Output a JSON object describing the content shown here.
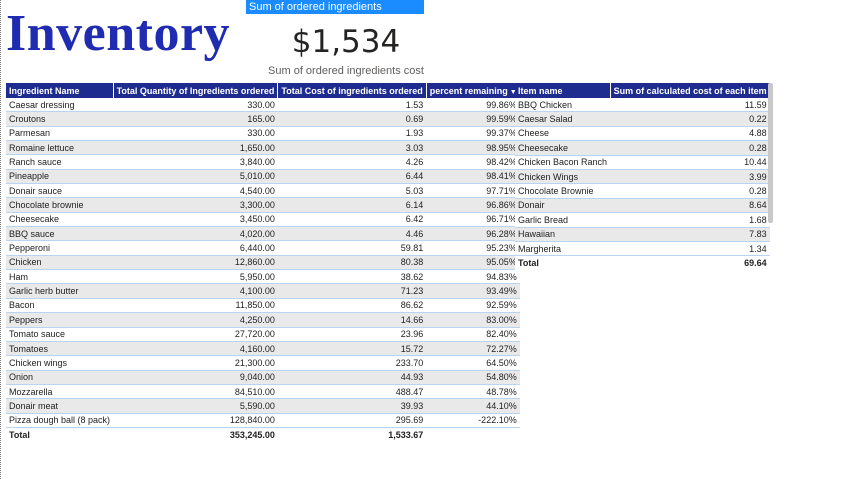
{
  "report": {
    "title": "Inventory"
  },
  "card": {
    "header": "Sum of ordered ingredients",
    "value": "$1,534",
    "label": "Sum of ordered ingredients cost"
  },
  "inventory_table": {
    "columns": [
      "Ingredient Name",
      "Total Quantity of Ingredients ordered",
      "Total Cost of ingredients ordered",
      "percent remaining"
    ],
    "rows": [
      [
        "Caesar dressing",
        "330.00",
        "1.53",
        "99.86%"
      ],
      [
        "Croutons",
        "165.00",
        "0.69",
        "99.59%"
      ],
      [
        "Parmesan",
        "330.00",
        "1.93",
        "99.37%"
      ],
      [
        "Romaine lettuce",
        "1,650.00",
        "3.03",
        "98.95%"
      ],
      [
        "Ranch sauce",
        "3,840.00",
        "4.26",
        "98.42%"
      ],
      [
        "Pineapple",
        "5,010.00",
        "6.44",
        "98.41%"
      ],
      [
        "Donair sauce",
        "4,540.00",
        "5.03",
        "97.71%"
      ],
      [
        "Chocolate brownie",
        "3,300.00",
        "6.14",
        "96.86%"
      ],
      [
        "Cheesecake",
        "3,450.00",
        "6.42",
        "96.71%"
      ],
      [
        "BBQ sauce",
        "4,020.00",
        "4.46",
        "96.28%"
      ],
      [
        "Pepperoni",
        "6,440.00",
        "59.81",
        "95.23%"
      ],
      [
        "Chicken",
        "12,860.00",
        "80.38",
        "95.05%"
      ],
      [
        "Ham",
        "5,950.00",
        "38.62",
        "94.83%"
      ],
      [
        "Garlic herb butter",
        "4,100.00",
        "71.23",
        "93.49%"
      ],
      [
        "Bacon",
        "11,850.00",
        "86.62",
        "92.59%"
      ],
      [
        "Peppers",
        "4,250.00",
        "14.66",
        "83.00%"
      ],
      [
        "Tomato sauce",
        "27,720.00",
        "23.96",
        "82.40%"
      ],
      [
        "Tomatoes",
        "4,160.00",
        "15.72",
        "72.27%"
      ],
      [
        "Chicken wings",
        "21,300.00",
        "233.70",
        "64.50%"
      ],
      [
        "Onion",
        "9,040.00",
        "44.93",
        "54.80%"
      ],
      [
        "Mozzarella",
        "84,510.00",
        "488.47",
        "48.78%"
      ],
      [
        "Donair meat",
        "5,590.00",
        "39.93",
        "44.10%"
      ],
      [
        "Pizza dough ball (8 pack)",
        "128,840.00",
        "295.69",
        "-222.10%"
      ]
    ],
    "total": [
      "Total",
      "353,245.00",
      "1,533.67",
      ""
    ]
  },
  "items_table": {
    "columns": [
      "Item name",
      "Sum of calculated cost of each item"
    ],
    "rows": [
      [
        "BBQ Chicken",
        "11.59"
      ],
      [
        "Caesar Salad",
        "0.22"
      ],
      [
        "Cheese",
        "4.88"
      ],
      [
        "Cheesecake",
        "0.28"
      ],
      [
        "Chicken Bacon Ranch",
        "10.44"
      ],
      [
        "Chicken Wings",
        "3.99"
      ],
      [
        "Chocolate Brownie",
        "0.28"
      ],
      [
        "Donair",
        "8.64"
      ],
      [
        "Garlic Bread",
        "1.68"
      ],
      [
        "Hawaiian",
        "7.83"
      ],
      [
        "Margherita",
        "1.34"
      ]
    ],
    "total": [
      "Total",
      "69.64"
    ]
  },
  "icons": {
    "sort": "sort-descending-icon"
  },
  "colors": {
    "header_bg": "#1f2c8f",
    "card_header_bg": "#1a8cff",
    "title": "#1f2bb0"
  }
}
